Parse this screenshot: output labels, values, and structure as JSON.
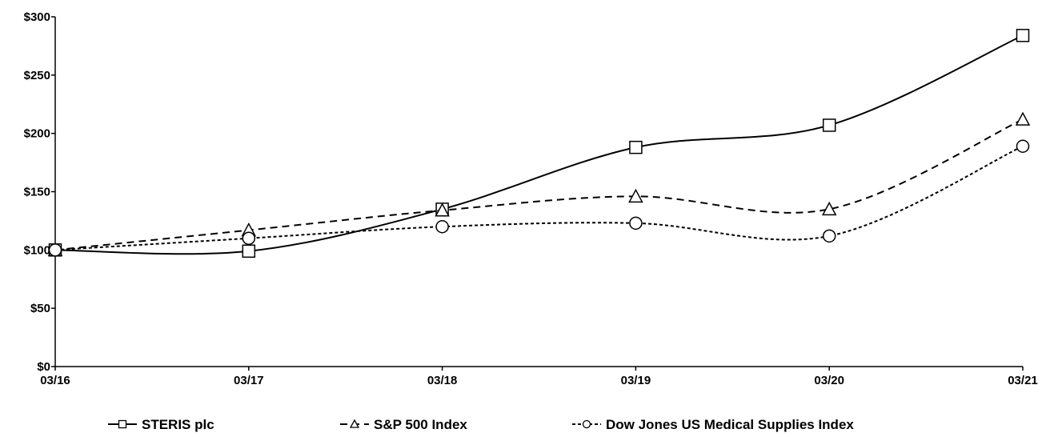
{
  "chart_data": {
    "type": "line",
    "title": "",
    "xlabel": "",
    "ylabel": "",
    "categories": [
      "03/16",
      "03/17",
      "03/18",
      "03/19",
      "03/20",
      "03/21"
    ],
    "y_ticks": [
      "$0",
      "$50",
      "$100",
      "$150",
      "$200",
      "$250",
      "$300"
    ],
    "ylim": [
      0,
      300
    ],
    "grid": false,
    "legend_position": "bottom",
    "series": [
      {
        "name": "STERIS plc",
        "values": [
          100,
          99,
          135,
          188,
          207,
          284
        ],
        "line_style": "solid",
        "marker": "square",
        "color": "#000000"
      },
      {
        "name": "S&P 500 Index",
        "values": [
          100,
          117,
          134,
          146,
          135,
          212
        ],
        "line_style": "dashed",
        "marker": "triangle",
        "color": "#000000"
      },
      {
        "name": "Dow Jones US Medical Supplies Index",
        "values": [
          100,
          110,
          120,
          123,
          112,
          189
        ],
        "line_style": "dotted",
        "marker": "circle",
        "color": "#000000"
      }
    ]
  }
}
